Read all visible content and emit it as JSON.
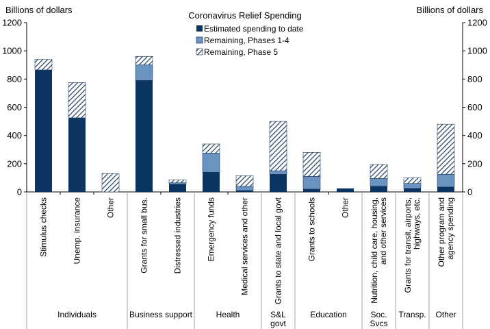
{
  "chart_data": {
    "type": "bar",
    "stacked": true,
    "title": "Coronavirus  Relief Spending",
    "ylabel_left": "Billions of dollars",
    "ylabel_right": "Billions of dollars",
    "ylim": [
      0,
      1200
    ],
    "yticks": [
      0,
      200,
      400,
      600,
      800,
      1000,
      1200
    ],
    "legend_position": "top-center",
    "colors": {
      "estimated": "#0b3560",
      "phase14": "#6a93c2",
      "phase5_line": "#1f3d5f",
      "axis": "#000000",
      "divider": "#a6a6a6"
    },
    "series": [
      {
        "name": "Estimated spending to date",
        "key": "estimated"
      },
      {
        "name": "Remaining, Phases 1-4",
        "key": "phase14"
      },
      {
        "name": "Remaining, Phase 5",
        "key": "phase5"
      }
    ],
    "categories": [
      {
        "label": [
          "Stimulus checks"
        ],
        "estimated": 865,
        "phase14": 0,
        "phase5": 75
      },
      {
        "label": [
          "Unemp. insurance"
        ],
        "estimated": 525,
        "phase14": 0,
        "phase5": 250
      },
      {
        "label": [
          "Other"
        ],
        "estimated": 0,
        "phase14": 0,
        "phase5": 130
      },
      {
        "label": [
          "Grants for small bus."
        ],
        "estimated": 790,
        "phase14": 110,
        "phase5": 60
      },
      {
        "label": [
          "Distressed industries"
        ],
        "estimated": 55,
        "phase14": 10,
        "phase5": 20
      },
      {
        "label": [
          "Emergency funds"
        ],
        "estimated": 140,
        "phase14": 135,
        "phase5": 65
      },
      {
        "label": [
          "Medical services and other"
        ],
        "estimated": 10,
        "phase14": 30,
        "phase5": 75
      },
      {
        "label": [
          "Grants to state and local govt"
        ],
        "estimated": 125,
        "phase14": 25,
        "phase5": 350
      },
      {
        "label": [
          "Grants to schools"
        ],
        "estimated": 20,
        "phase14": 90,
        "phase5": 170
      },
      {
        "label": [
          "Other"
        ],
        "estimated": 25,
        "phase14": 0,
        "phase5": 0
      },
      {
        "label": [
          "Nutrition, child care, housing,",
          "and other services"
        ],
        "estimated": 40,
        "phase14": 55,
        "phase5": 100
      },
      {
        "label": [
          "Grants for transit, airports,",
          "highways, etc."
        ],
        "estimated": 25,
        "phase14": 35,
        "phase5": 40
      },
      {
        "label": [
          "Other program and",
          "agency spending"
        ],
        "estimated": 35,
        "phase14": 90,
        "phase5": 355
      }
    ],
    "groups": [
      {
        "label": [
          "Individuals"
        ],
        "start": 0,
        "count": 3
      },
      {
        "label": [
          "Business support"
        ],
        "start": 3,
        "count": 2
      },
      {
        "label": [
          "Health"
        ],
        "start": 5,
        "count": 2
      },
      {
        "label": [
          "S&L",
          "govt"
        ],
        "start": 7,
        "count": 1
      },
      {
        "label": [
          "Education"
        ],
        "start": 8,
        "count": 2
      },
      {
        "label": [
          "Soc.",
          "Svcs"
        ],
        "start": 10,
        "count": 1
      },
      {
        "label": [
          "Transp."
        ],
        "start": 11,
        "count": 1
      },
      {
        "label": [
          "Other"
        ],
        "start": 12,
        "count": 1
      }
    ]
  }
}
